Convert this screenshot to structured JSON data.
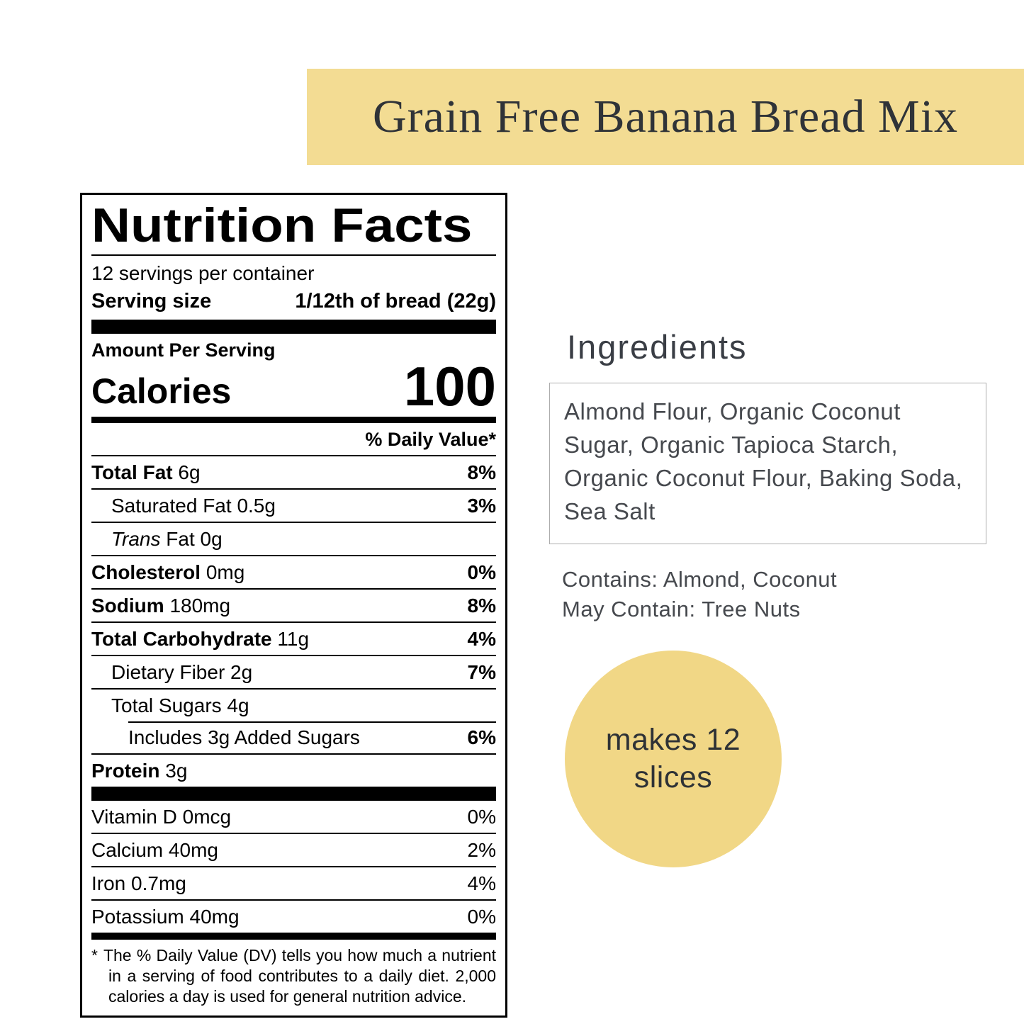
{
  "colors": {
    "banner_bg": "#f3dc93",
    "badge_bg": "#f1d786",
    "banner_text": "#2f3338",
    "right_text": "#46494e"
  },
  "banner": {
    "title": "Grain Free Banana Bread Mix"
  },
  "nutrition": {
    "title": "Nutrition Facts",
    "servings_per_container": "12 servings per container",
    "serving_size_label": "Serving size",
    "serving_size_value": "1/12th of bread (22g)",
    "amount_per_serving": "Amount Per Serving",
    "calories_label": "Calories",
    "calories_value": "100",
    "daily_value_header": "% Daily Value*",
    "rows": [
      {
        "name": "Total Fat",
        "amount": "6g",
        "dv": "8%"
      },
      {
        "name": "Saturated Fat",
        "amount": "0.5g",
        "dv": "3%"
      },
      {
        "italic_prefix": "Trans",
        "name": "Fat",
        "amount": "0g",
        "dv": ""
      },
      {
        "name": "Cholesterol",
        "amount": "0mg",
        "dv": "0%"
      },
      {
        "name": "Sodium",
        "amount": "180mg",
        "dv": "8%"
      },
      {
        "name": "Total Carbohydrate",
        "amount": "11g",
        "dv": "4%"
      },
      {
        "name": "Dietary Fiber",
        "amount": "2g",
        "dv": "7%"
      },
      {
        "name": "Total Sugars",
        "amount": "4g",
        "dv": ""
      },
      {
        "name": "Includes 3g Added Sugars",
        "amount": "",
        "dv": "6%"
      },
      {
        "name": "Protein",
        "amount": "3g",
        "dv": ""
      }
    ],
    "vitamins": [
      {
        "name": "Vitamin D",
        "amount": "0mcg",
        "dv": "0%"
      },
      {
        "name": "Calcium",
        "amount": "40mg",
        "dv": "2%"
      },
      {
        "name": "Iron",
        "amount": "0.7mg",
        "dv": "4%"
      },
      {
        "name": "Potassium",
        "amount": "40mg",
        "dv": "0%"
      }
    ],
    "footnote_marker": "*",
    "footnote": "The % Daily Value (DV) tells you how much a nutrient in a serving of food contributes to a daily diet. 2,000 calories a day is used for general nutrition advice."
  },
  "ingredients": {
    "heading": "Ingredients",
    "list": "Almond Flour, Organic Coconut Sugar, Organic Tapioca Starch, Organic Coconut Flour, Baking Soda, Sea Salt",
    "contains": "Contains: Almond, Coconut",
    "may_contain": "May Contain: Tree Nuts"
  },
  "badge": {
    "line1": "makes 12",
    "line2": "slices"
  }
}
